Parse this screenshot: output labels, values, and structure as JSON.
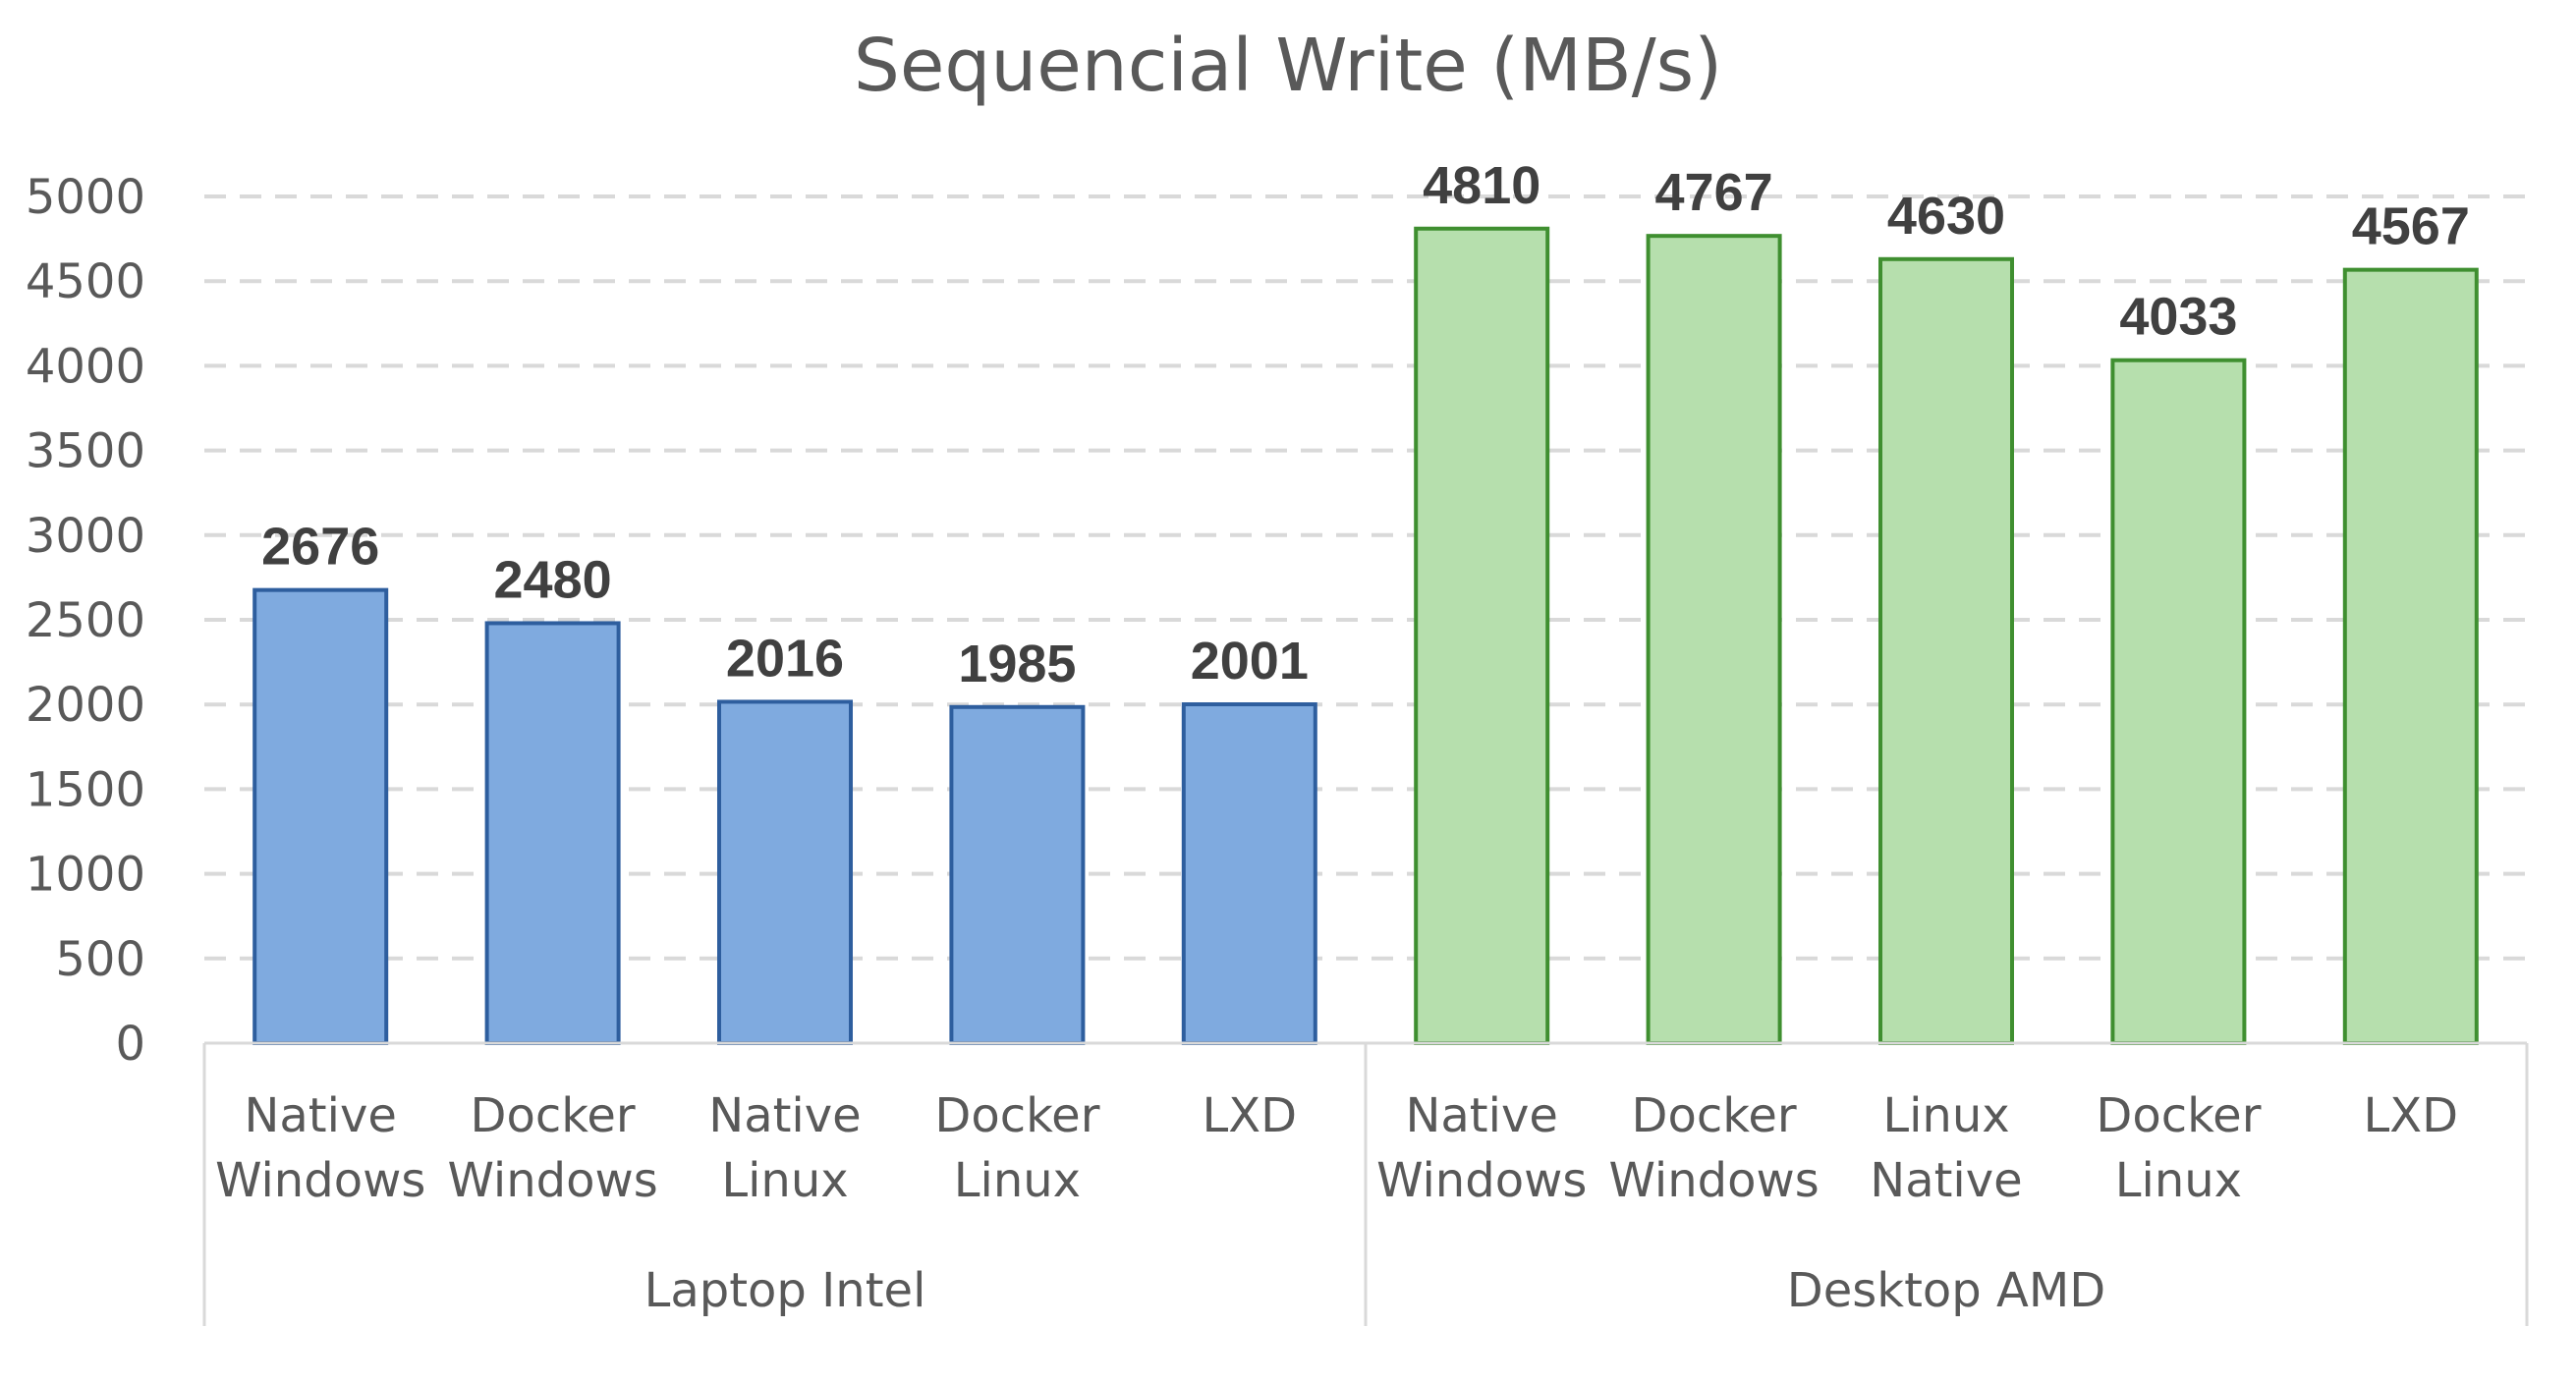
{
  "chart_data": {
    "type": "bar",
    "title": "Sequencial Write (MB/s)",
    "xlabel": "",
    "ylabel": "",
    "ylim": [
      0,
      5000
    ],
    "yticks": [
      0,
      500,
      1000,
      1500,
      2000,
      2500,
      3000,
      3500,
      4000,
      4500,
      5000
    ],
    "grid": true,
    "groups": [
      {
        "name": "Laptop Intel",
        "color": "#7faadf",
        "edge_color": "#2e5e9e",
        "bars": [
          {
            "label": [
              "Native",
              "Windows"
            ],
            "value": 2676
          },
          {
            "label": [
              "Docker",
              "Windows"
            ],
            "value": 2480
          },
          {
            "label": [
              "Native",
              "Linux"
            ],
            "value": 2016
          },
          {
            "label": [
              "Docker",
              "Linux"
            ],
            "value": 1985
          },
          {
            "label": [
              "LXD"
            ],
            "value": 2001
          }
        ]
      },
      {
        "name": "Desktop AMD",
        "color": "#b6dfad",
        "edge_color": "#3f8f30",
        "bars": [
          {
            "label": [
              "Native",
              "Windows"
            ],
            "value": 4810
          },
          {
            "label": [
              "Docker",
              "Windows"
            ],
            "value": 4767
          },
          {
            "label": [
              "Linux",
              "Native"
            ],
            "value": 4630
          },
          {
            "label": [
              "Docker",
              "Linux"
            ],
            "value": 4033
          },
          {
            "label": [
              "LXD"
            ],
            "value": 4567
          }
        ]
      }
    ]
  }
}
